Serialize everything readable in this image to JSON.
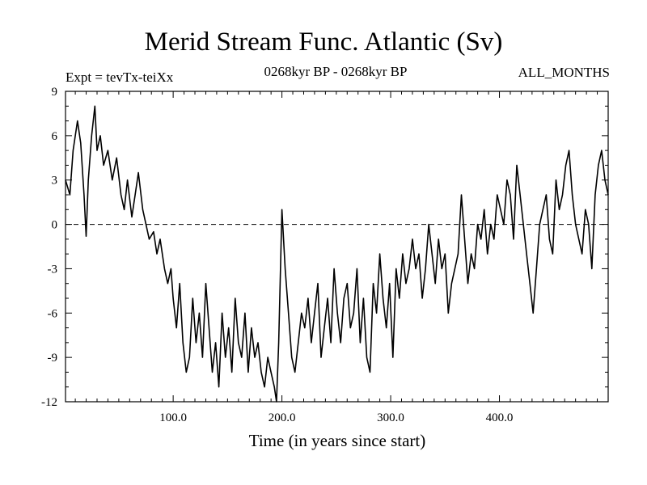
{
  "title": "Merid Stream Func. Atlantic (Sv)",
  "expt_label": "Expt = tevTx-teiXx",
  "period_label": "0268kyr BP - 0268kyr BP",
  "months_label": "ALL_MONTHS",
  "chart_data": {
    "type": "line",
    "title": "Merid Stream Func. Atlantic (Sv)",
    "xlabel": "Time (in years since start)",
    "ylabel": "",
    "xlim": [
      1,
      500
    ],
    "ylim": [
      -12,
      9
    ],
    "x_ticks": [
      100,
      200,
      300,
      400
    ],
    "x_tick_labels": [
      "100.0",
      "200.0",
      "300.0",
      "400.0"
    ],
    "y_ticks": [
      9,
      6,
      3,
      0,
      -3,
      -6,
      -9,
      -12
    ],
    "y_tick_labels": [
      "9",
      "6",
      "3",
      "0",
      "-3",
      "-6",
      "-9",
      "-12"
    ],
    "reference_line": 0,
    "series": [
      {
        "name": "",
        "color": "#000000",
        "x": [
          1,
          5,
          8,
          12,
          15,
          18,
          20,
          22,
          25,
          28,
          30,
          33,
          36,
          40,
          44,
          48,
          52,
          55,
          58,
          62,
          65,
          68,
          72,
          75,
          78,
          82,
          85,
          88,
          92,
          95,
          98,
          100,
          103,
          106,
          109,
          112,
          115,
          118,
          121,
          124,
          127,
          130,
          133,
          136,
          139,
          142,
          145,
          148,
          151,
          154,
          157,
          160,
          163,
          166,
          169,
          172,
          175,
          178,
          181,
          184,
          187,
          190,
          193,
          195,
          197,
          200,
          203,
          206,
          209,
          212,
          215,
          218,
          221,
          224,
          227,
          230,
          233,
          236,
          239,
          242,
          245,
          248,
          251,
          254,
          257,
          260,
          263,
          266,
          269,
          272,
          275,
          278,
          281,
          284,
          287,
          290,
          293,
          296,
          299,
          302,
          305,
          308,
          311,
          314,
          317,
          320,
          323,
          326,
          329,
          332,
          335,
          338,
          341,
          344,
          347,
          350,
          353,
          356,
          359,
          362,
          365,
          368,
          371,
          374,
          377,
          380,
          383,
          386,
          389,
          392,
          395,
          398,
          401,
          404,
          407,
          410,
          413,
          416,
          419,
          422,
          425,
          428,
          431,
          434,
          437,
          440,
          443,
          446,
          449,
          452,
          455,
          458,
          461,
          464,
          467,
          470,
          473,
          476,
          479,
          482,
          485,
          488,
          491,
          494,
          497,
          500
        ],
        "values": [
          3,
          2,
          5,
          7,
          5.5,
          2,
          -0.8,
          3,
          6,
          8,
          5,
          6,
          4,
          5,
          3,
          4.5,
          2,
          1,
          3,
          0.5,
          2,
          3.5,
          1,
          0,
          -1,
          -0.5,
          -2,
          -1,
          -3,
          -4,
          -3,
          -5,
          -7,
          -4,
          -8,
          -10,
          -9,
          -5,
          -8,
          -6,
          -9,
          -4,
          -7,
          -10,
          -8,
          -11,
          -6,
          -9,
          -7,
          -10,
          -5,
          -8,
          -9,
          -6,
          -10,
          -7,
          -9,
          -8,
          -10,
          -11,
          -9,
          -10,
          -11,
          -12,
          -8,
          1,
          -3,
          -6,
          -9,
          -10,
          -8,
          -6,
          -7,
          -5,
          -8,
          -6,
          -4,
          -9,
          -7,
          -5,
          -8,
          -3,
          -6,
          -8,
          -5,
          -4,
          -7,
          -6,
          -3,
          -8,
          -5,
          -9,
          -10,
          -4,
          -6,
          -2,
          -5,
          -7,
          -4,
          -9,
          -3,
          -5,
          -2,
          -4,
          -3,
          -1,
          -3,
          -2,
          -5,
          -3,
          0,
          -2,
          -4,
          -1,
          -3,
          -2,
          -6,
          -4,
          -3,
          -2,
          2,
          -1,
          -4,
          -2,
          -3,
          0,
          -1,
          1,
          -2,
          0,
          -1,
          2,
          1,
          0,
          3,
          2,
          -1,
          4,
          2,
          0,
          -2,
          -4,
          -6,
          -3,
          0,
          1,
          2,
          -1,
          -2,
          3,
          1,
          2,
          4,
          5,
          2,
          0,
          -1,
          -2,
          1,
          0,
          -3,
          2,
          4,
          5,
          3,
          2
        ]
      }
    ]
  }
}
